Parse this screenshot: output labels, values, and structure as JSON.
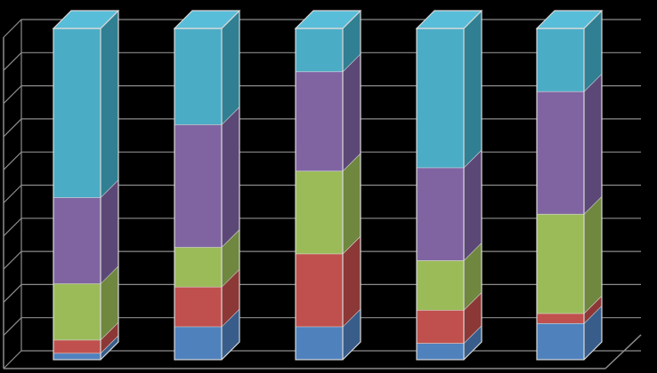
{
  "chart_data": {
    "type": "bar",
    "stacked": true,
    "three_d": true,
    "title": "",
    "xlabel": "",
    "ylabel": "",
    "ylim": [
      0,
      100
    ],
    "grid": true,
    "legend": "none",
    "background": "#000000",
    "grid_color": "#8c8c8c",
    "categories": [
      "",
      "",
      "",
      "",
      ""
    ],
    "series": [
      {
        "color": "#4f81bd",
        "side_color": "#385d8a",
        "values": [
          2,
          10,
          10,
          5,
          11
        ]
      },
      {
        "color": "#c0504d",
        "side_color": "#8c3836",
        "values": [
          4,
          12,
          22,
          10,
          3
        ]
      },
      {
        "color": "#9bbb59",
        "side_color": "#6f873f",
        "values": [
          17,
          12,
          25,
          15,
          30
        ]
      },
      {
        "color": "#8064a2",
        "side_color": "#5c4876",
        "values": [
          26,
          37,
          30,
          28,
          37
        ]
      },
      {
        "color": "#4bacc6",
        "side_color": "#317f92",
        "values": [
          51,
          29,
          13,
          42,
          19
        ]
      }
    ]
  }
}
